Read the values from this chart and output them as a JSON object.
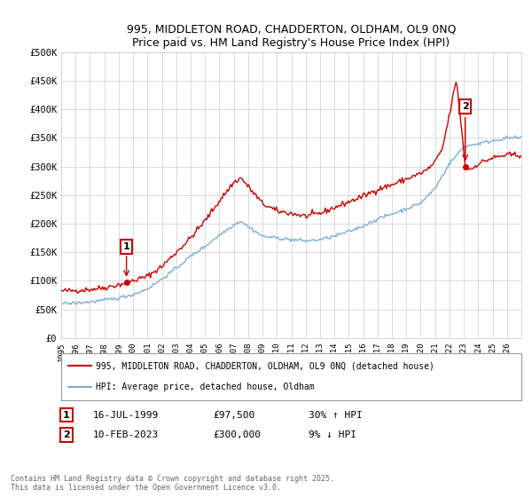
{
  "title": "995, MIDDLETON ROAD, CHADDERTON, OLDHAM, OL9 0NQ",
  "subtitle": "Price paid vs. HM Land Registry's House Price Index (HPI)",
  "legend_label_red": "995, MIDDLETON ROAD, CHADDERTON, OLDHAM, OL9 0NQ (detached house)",
  "legend_label_blue": "HPI: Average price, detached house, Oldham",
  "annotation1_date": "16-JUL-1999",
  "annotation1_price": "£97,500",
  "annotation1_hpi": "30% ↑ HPI",
  "annotation2_date": "10-FEB-2023",
  "annotation2_price": "£300,000",
  "annotation2_hpi": "9% ↓ HPI",
  "footer": "Contains HM Land Registry data © Crown copyright and database right 2025.\nThis data is licensed under the Open Government Licence v3.0.",
  "ylim": [
    0,
    500000
  ],
  "yticks": [
    0,
    50000,
    100000,
    150000,
    200000,
    250000,
    300000,
    350000,
    400000,
    450000,
    500000
  ],
  "ytick_labels": [
    "£0",
    "£50K",
    "£100K",
    "£150K",
    "£200K",
    "£250K",
    "£300K",
    "£350K",
    "£400K",
    "£450K",
    "£500K"
  ],
  "xlim_start": 1995,
  "xlim_end": 2027,
  "background_color": "#ffffff",
  "grid_color": "#cccccc",
  "red_color": "#cc0000",
  "blue_color": "#7bafd4",
  "ann1_x": 1999.54,
  "ann1_y": 97500,
  "ann2_x": 2023.1,
  "ann2_y": 300000,
  "red_key_x": [
    1995,
    1996,
    1997,
    1998,
    1999.0,
    1999.54,
    2000,
    2001,
    2002,
    2003,
    2004,
    2005,
    2006,
    2007,
    2007.5,
    2008,
    2009,
    2010,
    2011,
    2012,
    2013,
    2014,
    2015,
    2016,
    2017,
    2018,
    2019,
    2020,
    2020.5,
    2021,
    2021.5,
    2022,
    2022.3,
    2022.5,
    2023.1,
    2023.5,
    2024,
    2024.5,
    2025,
    2026
  ],
  "red_key_y": [
    82000,
    83000,
    85000,
    88000,
    93000,
    97500,
    100000,
    108000,
    125000,
    150000,
    175000,
    205000,
    240000,
    272000,
    280000,
    265000,
    235000,
    222000,
    218000,
    213000,
    218000,
    228000,
    238000,
    248000,
    260000,
    268000,
    278000,
    288000,
    295000,
    308000,
    330000,
    390000,
    430000,
    450000,
    300000,
    295000,
    305000,
    310000,
    315000,
    320000
  ],
  "blue_key_x": [
    1995,
    1996,
    1997,
    1998,
    1999,
    2000,
    2001,
    2002,
    2003,
    2004,
    2005,
    2006,
    2007,
    2007.5,
    2008,
    2009,
    2010,
    2011,
    2012,
    2013,
    2014,
    2015,
    2016,
    2017,
    2018,
    2019,
    2020,
    2021,
    2022,
    2023,
    2024,
    2025,
    2026
  ],
  "blue_key_y": [
    60000,
    61000,
    63000,
    66000,
    70000,
    76000,
    86000,
    103000,
    122000,
    143000,
    160000,
    180000,
    198000,
    205000,
    195000,
    178000,
    175000,
    172000,
    170000,
    172000,
    178000,
    186000,
    196000,
    208000,
    217000,
    226000,
    236000,
    262000,
    305000,
    335000,
    340000,
    345000,
    350000
  ]
}
